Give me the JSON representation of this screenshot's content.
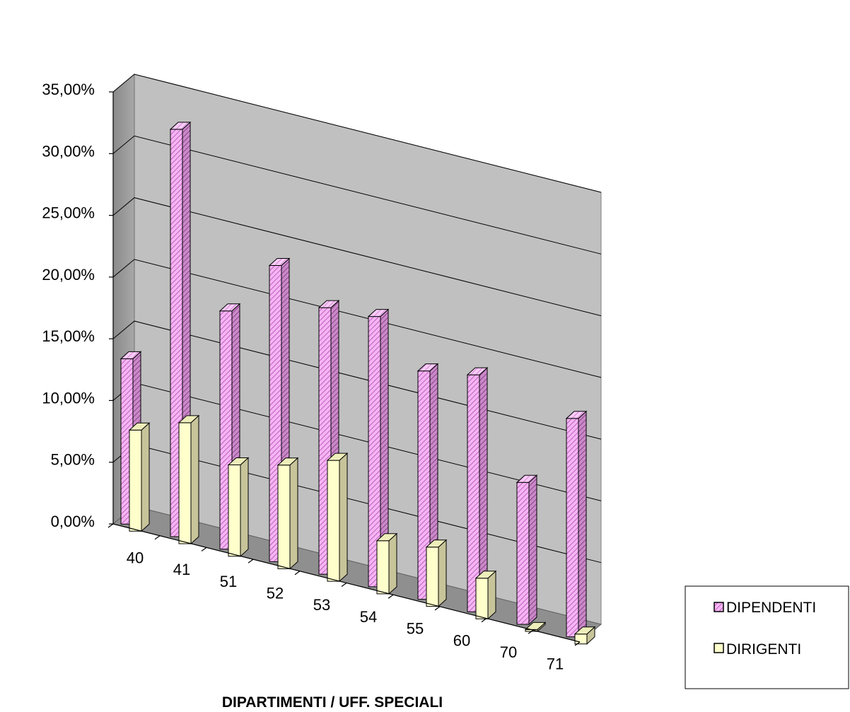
{
  "chart_data": {
    "type": "bar",
    "title": "",
    "xlabel": "DIPARTIMENTI / UFF. SPECIALI",
    "ylabel": "",
    "ylim": [
      0,
      35
    ],
    "y_tick_labels": [
      "0,00%",
      "5,00%",
      "10,00%",
      "15,00%",
      "20,00%",
      "25,00%",
      "30,00%",
      "35,00%"
    ],
    "categories": [
      "40",
      "41",
      "51",
      "52",
      "53",
      "54",
      "55",
      "60",
      "70",
      "71"
    ],
    "series": [
      {
        "name": "DIPENDENTI",
        "color": "#f2a6f2",
        "pattern": "diagonal-hatch",
        "values": [
          13.4,
          33.0,
          19.3,
          24.0,
          21.6,
          21.9,
          18.5,
          19.2,
          11.5,
          17.7
        ]
      },
      {
        "name": "DIRIGENTI",
        "color": "#ffffcc",
        "pattern": "solid",
        "values": [
          8.2,
          9.8,
          7.4,
          8.4,
          9.8,
          4.3,
          4.8,
          3.3,
          0.0,
          0.8
        ]
      }
    ],
    "grid": true,
    "legend_position": "bottom-right",
    "view": "3d-perspective"
  }
}
